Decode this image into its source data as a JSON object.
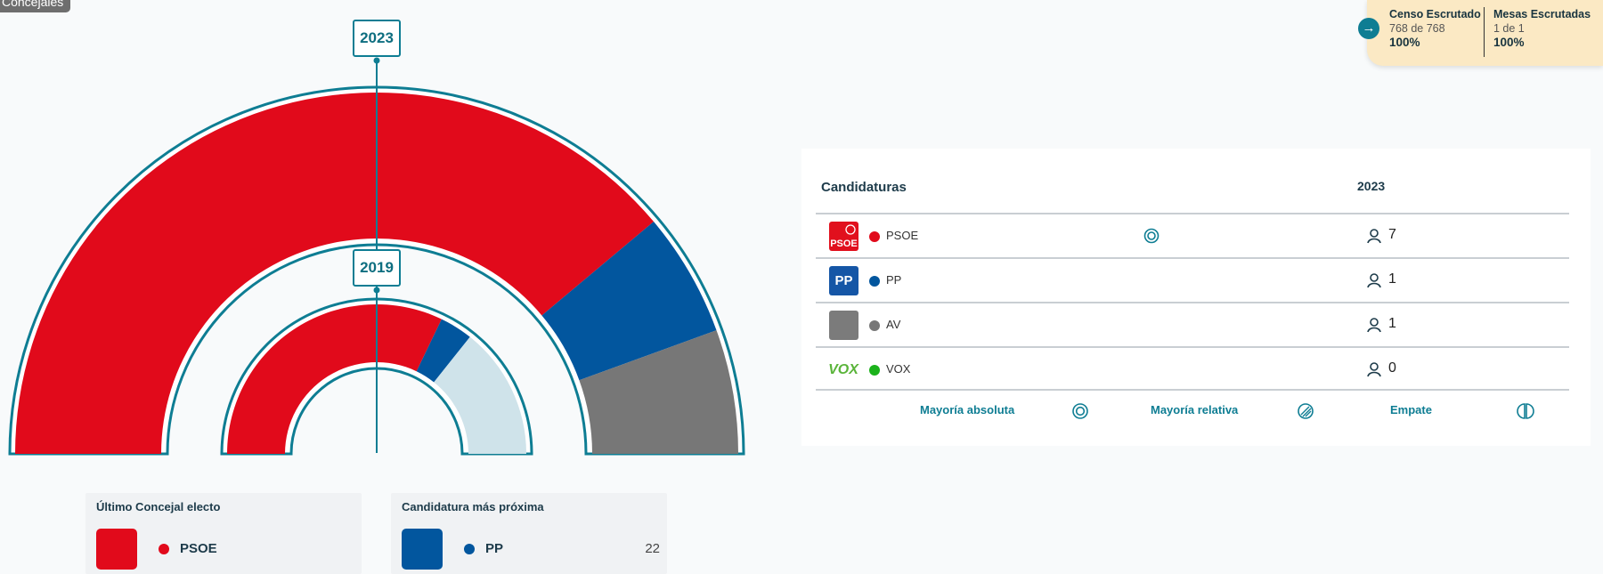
{
  "corner_tag": "Concejales",
  "escrutinio": {
    "censo": {
      "title": "Censo Escrutado",
      "sub": "768 de 768",
      "pct": "100%"
    },
    "mesas": {
      "title": "Mesas Escrutadas",
      "sub": "1 de 1",
      "pct": "100%"
    },
    "arrow_icon": "arrow-right-icon"
  },
  "chart_data": {
    "type": "hemicycle",
    "series": [
      {
        "name": "2023",
        "values": [
          {
            "party": "PSOE",
            "value": 7,
            "color": "#e10a1b"
          },
          {
            "party": "PP",
            "value": 1,
            "color": "#02569e"
          },
          {
            "party": "AV",
            "value": 1,
            "color": "#777777"
          }
        ]
      },
      {
        "name": "2019",
        "values": [
          {
            "party": "PSOE",
            "value": 4.5,
            "color": "#e10a1b"
          },
          {
            "party": "PP",
            "value": 0.5,
            "color": "#02569e"
          },
          {
            "party": "",
            "value": 2,
            "color": "#cfe3ea"
          }
        ]
      }
    ]
  },
  "last_elected": {
    "title": "Último Concejal electo",
    "party": "PSOE",
    "color": "#e10a1b"
  },
  "next_candidate": {
    "title": "Candidatura más próxima",
    "party": "PP",
    "value": "22",
    "color": "#02569e"
  },
  "table": {
    "header_candidates": "Candidaturas",
    "header_year": "2023",
    "rows": [
      {
        "logo": "PSOE",
        "party": "PSOE",
        "color": "#e10a1b",
        "majority_icon": "absolute-majority-icon",
        "seats": "7"
      },
      {
        "logo": "PP",
        "party": "PP",
        "color": "#02569e",
        "majority_icon": "",
        "seats": "1"
      },
      {
        "logo": "",
        "party": "AV",
        "color": "#777777",
        "majority_icon": "",
        "seats": "1"
      },
      {
        "logo": "VOX",
        "party": "VOX",
        "color": "#1bb21b",
        "majority_icon": "",
        "seats": "0"
      }
    ],
    "legend": [
      {
        "label": "Mayoría absoluta",
        "icon": "absolute-majority-icon"
      },
      {
        "label": "Mayoría relativa",
        "icon": "relative-majority-icon"
      },
      {
        "label": "Empate",
        "icon": "tie-icon"
      }
    ]
  }
}
